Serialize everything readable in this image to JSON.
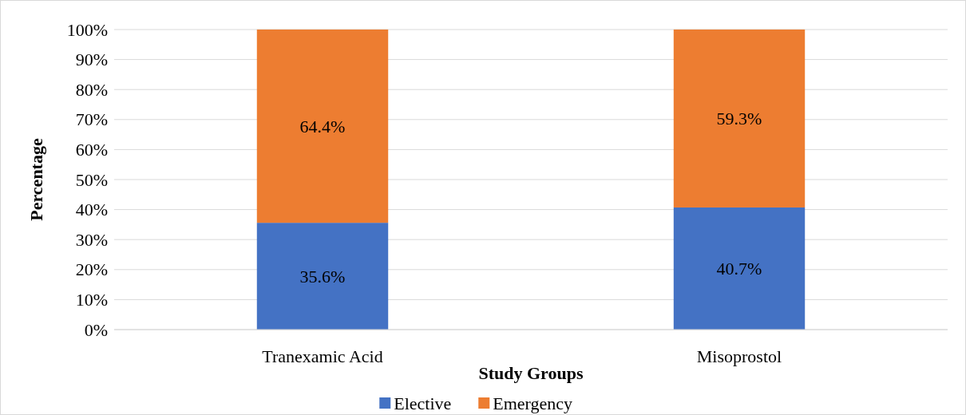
{
  "chart_data": {
    "type": "bar",
    "stacked": true,
    "xlabel": "Study Groups",
    "ylabel": "Percentage",
    "categories": [
      "Tranexamic Acid",
      "Misoprostol"
    ],
    "series": [
      {
        "name": "Elective",
        "color": "#4472c4",
        "values": [
          35.6,
          40.7
        ],
        "value_labels": [
          "35.6%",
          "40.7%"
        ]
      },
      {
        "name": "Emergency",
        "color": "#ed7d31",
        "values": [
          64.4,
          59.3
        ],
        "value_labels": [
          "64.4%",
          "59.3%"
        ]
      }
    ],
    "ylim": [
      0,
      100
    ],
    "yticks": [
      {
        "value": 0,
        "label": "0%"
      },
      {
        "value": 10,
        "label": "10%"
      },
      {
        "value": 20,
        "label": "20%"
      },
      {
        "value": 30,
        "label": "30%"
      },
      {
        "value": 40,
        "label": "40%"
      },
      {
        "value": 50,
        "label": "50%"
      },
      {
        "value": 60,
        "label": "60%"
      },
      {
        "value": 70,
        "label": "70%"
      },
      {
        "value": 80,
        "label": "80%"
      },
      {
        "value": 90,
        "label": "90%"
      },
      {
        "value": 100,
        "label": "100%"
      }
    ],
    "grid": "y",
    "legend": "bottom"
  }
}
